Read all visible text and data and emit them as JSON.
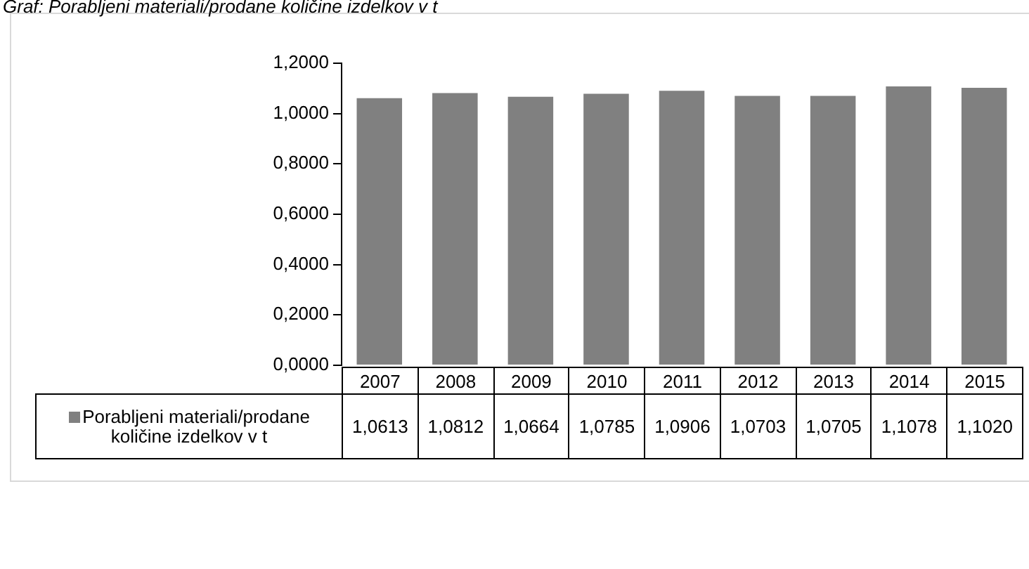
{
  "chart_data": {
    "type": "bar",
    "title": "Graf: Porabljeni materiali/prodane količine izdelkov v t",
    "categories": [
      "2007",
      "2008",
      "2009",
      "2010",
      "2011",
      "2012",
      "2013",
      "2014",
      "2015"
    ],
    "series": [
      {
        "name": "Porabljeni materiali/prodane količine izdelkov v t",
        "color": "#808080",
        "values": [
          1.0613,
          1.0812,
          1.0664,
          1.0785,
          1.0906,
          1.0703,
          1.0705,
          1.1078,
          1.102
        ],
        "value_labels": [
          "1,0613",
          "1,0812",
          "1,0664",
          "1,0785",
          "1,0906",
          "1,0703",
          "1,0705",
          "1,1078",
          "1,1020"
        ]
      }
    ],
    "ylim": [
      0,
      1.2
    ],
    "yticks": [
      {
        "value": 0,
        "label": "0,0000"
      },
      {
        "value": 0.2,
        "label": "0,2000"
      },
      {
        "value": 0.4,
        "label": "0,4000"
      },
      {
        "value": 0.6,
        "label": "0,6000"
      },
      {
        "value": 0.8,
        "label": "0,8000"
      },
      {
        "value": 1.0,
        "label": "1,0000"
      },
      {
        "value": 1.2,
        "label": "1,2000"
      }
    ],
    "grid": false,
    "legend": "bottom"
  }
}
